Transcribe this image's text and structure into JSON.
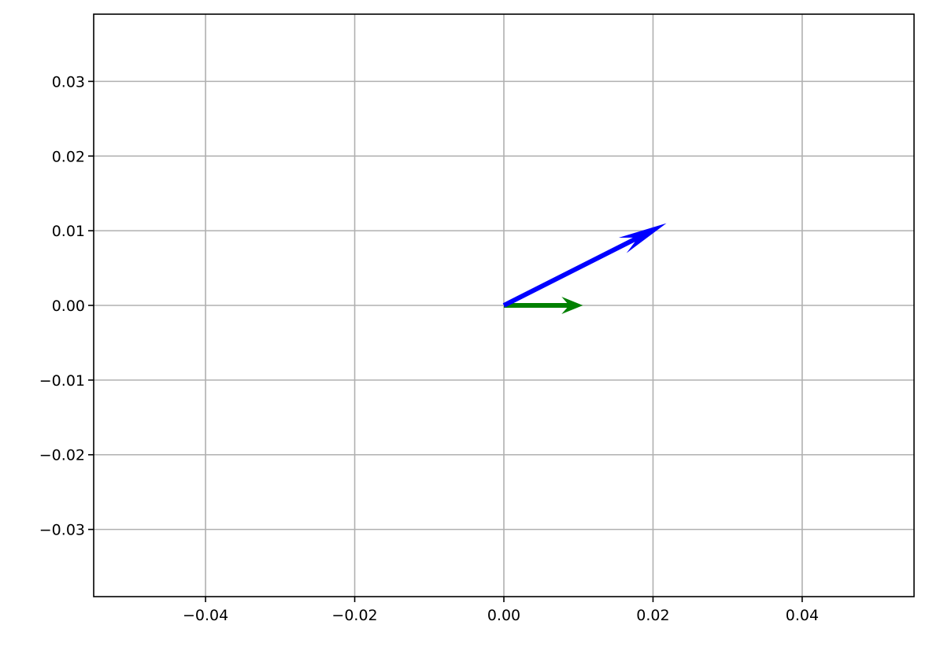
{
  "chart_data": {
    "type": "quiver",
    "title": "",
    "xlabel": "",
    "ylabel": "",
    "xlim": [
      -0.055,
      0.055
    ],
    "ylim": [
      -0.039,
      0.039
    ],
    "grid": true,
    "xticks": [
      -0.04,
      -0.02,
      0.0,
      0.02,
      0.04
    ],
    "xtick_labels": [
      "−0.04",
      "−0.02",
      "0.00",
      "0.02",
      "0.04"
    ],
    "yticks": [
      -0.03,
      -0.02,
      -0.01,
      0.0,
      0.01,
      0.02,
      0.03
    ],
    "ytick_labels": [
      "−0.03",
      "−0.02",
      "−0.01",
      "0.00",
      "0.01",
      "0.02",
      "0.03"
    ],
    "vectors": [
      {
        "origin": [
          0,
          0
        ],
        "u": 0.0106,
        "v": 0.0,
        "color": "#008000"
      },
      {
        "origin": [
          0,
          0
        ],
        "u": 0.0218,
        "v": 0.011,
        "color": "#0000ff"
      }
    ]
  }
}
